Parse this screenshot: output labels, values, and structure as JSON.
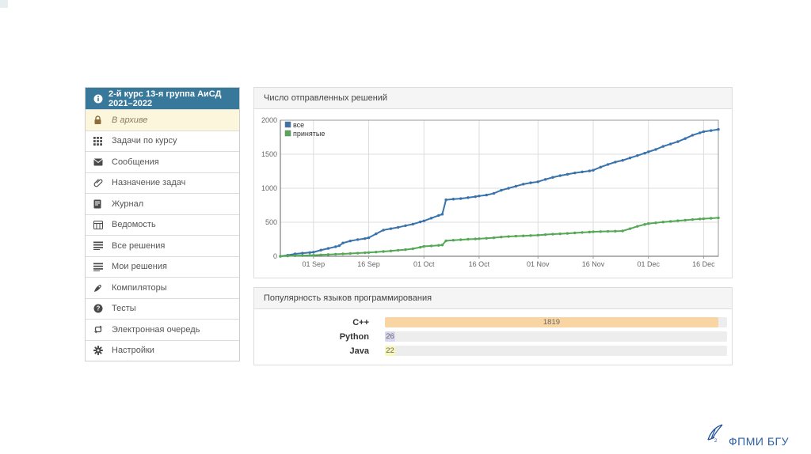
{
  "sidebar": {
    "header": {
      "label": "2-й курс 13-я группа АиСД 2021–2022"
    },
    "items": [
      {
        "label": "В архиве",
        "icon": "lock-icon",
        "active": true
      },
      {
        "label": "Задачи по курсу",
        "icon": "grid-icon"
      },
      {
        "label": "Сообщения",
        "icon": "envelope-icon"
      },
      {
        "label": "Назначение задач",
        "icon": "paperclip-icon"
      },
      {
        "label": "Журнал",
        "icon": "journal-icon"
      },
      {
        "label": "Ведомость",
        "icon": "table-icon"
      },
      {
        "label": "Все решения",
        "icon": "list-icon"
      },
      {
        "label": "Мои решения",
        "icon": "list-icon"
      },
      {
        "label": "Компиляторы",
        "icon": "rocket-icon"
      },
      {
        "label": "Тесты",
        "icon": "question-circle-icon"
      },
      {
        "label": "Электронная очередь",
        "icon": "repeat-icon"
      },
      {
        "label": "Настройки",
        "icon": "gear-icon"
      }
    ]
  },
  "chart_data": [
    {
      "type": "line",
      "title": "Число отправленных решений",
      "x_tick_labels": [
        "01 Sep",
        "16 Sep",
        "01 Oct",
        "16 Oct",
        "01 Nov",
        "16 Nov",
        "01 Dec",
        "16 Dec"
      ],
      "x_tick_days": [
        9,
        24,
        39,
        54,
        70,
        85,
        100,
        115
      ],
      "x_range_days": [
        0,
        119
      ],
      "ylim": [
        0,
        2000
      ],
      "y_ticks": [
        0,
        500,
        1000,
        1500,
        2000
      ],
      "grid": true,
      "legend_position": "top-left",
      "series": [
        {
          "name": "все",
          "color": "#3973ac",
          "points": [
            [
              0,
              0
            ],
            [
              2,
              15
            ],
            [
              4,
              35
            ],
            [
              6,
              45
            ],
            [
              8,
              55
            ],
            [
              9,
              60
            ],
            [
              11,
              90
            ],
            [
              13,
              115
            ],
            [
              15,
              140
            ],
            [
              16,
              155
            ],
            [
              17,
              195
            ],
            [
              19,
              225
            ],
            [
              21,
              245
            ],
            [
              23,
              260
            ],
            [
              24,
              272
            ],
            [
              26,
              330
            ],
            [
              28,
              385
            ],
            [
              30,
              405
            ],
            [
              32,
              425
            ],
            [
              34,
              450
            ],
            [
              36,
              472
            ],
            [
              38,
              505
            ],
            [
              39,
              520
            ],
            [
              41,
              560
            ],
            [
              43,
              600
            ],
            [
              44,
              618
            ],
            [
              45,
              830
            ],
            [
              47,
              840
            ],
            [
              49,
              848
            ],
            [
              51,
              862
            ],
            [
              53,
              876
            ],
            [
              54,
              886
            ],
            [
              56,
              900
            ],
            [
              58,
              925
            ],
            [
              60,
              970
            ],
            [
              62,
              1000
            ],
            [
              64,
              1030
            ],
            [
              66,
              1060
            ],
            [
              68,
              1080
            ],
            [
              70,
              1095
            ],
            [
              72,
              1130
            ],
            [
              74,
              1160
            ],
            [
              76,
              1185
            ],
            [
              78,
              1205
            ],
            [
              80,
              1225
            ],
            [
              82,
              1240
            ],
            [
              84,
              1255
            ],
            [
              85,
              1265
            ],
            [
              87,
              1310
            ],
            [
              89,
              1350
            ],
            [
              91,
              1385
            ],
            [
              93,
              1410
            ],
            [
              95,
              1445
            ],
            [
              97,
              1480
            ],
            [
              99,
              1515
            ],
            [
              100,
              1535
            ],
            [
              102,
              1570
            ],
            [
              104,
              1615
            ],
            [
              106,
              1650
            ],
            [
              108,
              1685
            ],
            [
              110,
              1730
            ],
            [
              112,
              1780
            ],
            [
              114,
              1815
            ],
            [
              115,
              1832
            ],
            [
              117,
              1848
            ],
            [
              119,
              1865
            ]
          ]
        },
        {
          "name": "принятые",
          "color": "#55a855",
          "points": [
            [
              0,
              0
            ],
            [
              2,
              5
            ],
            [
              4,
              8
            ],
            [
              6,
              10
            ],
            [
              8,
              13
            ],
            [
              9,
              15
            ],
            [
              11,
              20
            ],
            [
              13,
              25
            ],
            [
              15,
              30
            ],
            [
              17,
              35
            ],
            [
              19,
              40
            ],
            [
              21,
              46
            ],
            [
              23,
              52
            ],
            [
              24,
              55
            ],
            [
              26,
              62
            ],
            [
              28,
              70
            ],
            [
              30,
              78
            ],
            [
              32,
              88
            ],
            [
              34,
              98
            ],
            [
              36,
              110
            ],
            [
              38,
              132
            ],
            [
              39,
              145
            ],
            [
              41,
              152
            ],
            [
              43,
              160
            ],
            [
              44,
              166
            ],
            [
              45,
              228
            ],
            [
              47,
              236
            ],
            [
              49,
              243
            ],
            [
              51,
              250
            ],
            [
              53,
              255
            ],
            [
              54,
              258
            ],
            [
              56,
              264
            ],
            [
              58,
              272
            ],
            [
              60,
              283
            ],
            [
              62,
              290
            ],
            [
              64,
              296
            ],
            [
              66,
              300
            ],
            [
              68,
              305
            ],
            [
              70,
              310
            ],
            [
              72,
              318
            ],
            [
              74,
              325
            ],
            [
              76,
              330
            ],
            [
              78,
              336
            ],
            [
              80,
              343
            ],
            [
              82,
              350
            ],
            [
              84,
              356
            ],
            [
              85,
              360
            ],
            [
              87,
              363
            ],
            [
              89,
              366
            ],
            [
              91,
              368
            ],
            [
              93,
              372
            ],
            [
              95,
              405
            ],
            [
              97,
              440
            ],
            [
              99,
              468
            ],
            [
              100,
              480
            ],
            [
              102,
              492
            ],
            [
              104,
              503
            ],
            [
              106,
              512
            ],
            [
              108,
              522
            ],
            [
              110,
              530
            ],
            [
              112,
              540
            ],
            [
              114,
              548
            ],
            [
              115,
              552
            ],
            [
              117,
              558
            ],
            [
              119,
              565
            ]
          ]
        }
      ]
    },
    {
      "type": "bar",
      "title": "Популярность языков программирования",
      "categories": [
        "C++",
        "Python",
        "Java"
      ],
      "values": [
        1819,
        26,
        22
      ],
      "colors": [
        "#f8d5a2",
        "#d9d6ef",
        "#f7f7bb"
      ],
      "xlim": [
        0,
        1867
      ]
    }
  ],
  "logo": {
    "text": "ФПМИ БГУ",
    "color": "#2b5fa7"
  }
}
